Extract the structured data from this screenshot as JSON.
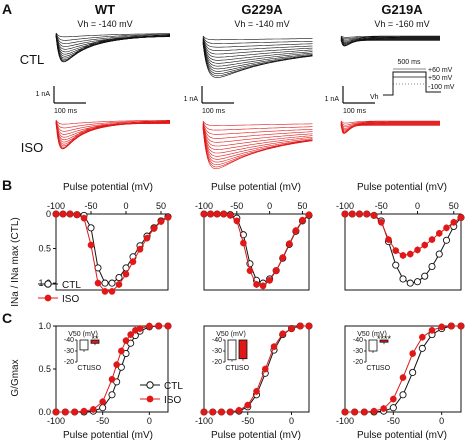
{
  "panels": {
    "A": "A",
    "B": "B",
    "C": "C"
  },
  "columns": [
    {
      "title": "WT",
      "holding": "Vh = -140 mV"
    },
    {
      "title": "G229A",
      "holding": "Vh = -140 mV"
    },
    {
      "title": "G219A",
      "holding": "Vh = -160 mV"
    }
  ],
  "rows": {
    "ctl": "CTL",
    "iso": "ISO"
  },
  "colors": {
    "ctl": "#111111",
    "iso": "#e01818"
  },
  "scalebars": {
    "current": "1 nA",
    "time": "100 ms"
  },
  "protocol": {
    "duration": "500 ms",
    "v_top": "+60 mV",
    "v_mid": "+50 mV",
    "v_bottom": "-100 mV",
    "vh": "Vh"
  },
  "axis": {
    "pulse": "Pulse potential (mV)",
    "ylabel_B": "INa / INa max (CTL)",
    "ylabel_C": "G/Gmax"
  },
  "legend": {
    "ctl": "CTL",
    "iso": "ISO"
  },
  "inset": {
    "title": "V50 (mV)",
    "labels": [
      "CTL",
      "ISO"
    ],
    "yticks": [
      "-40",
      "-30",
      "-20"
    ],
    "significance": [
      "**",
      "",
      "****"
    ]
  },
  "chart_data": [
    {
      "type": "line",
      "panel": "B",
      "column": "WT",
      "xlabel": "Pulse potential (mV)",
      "ylabel": "INa / INa max (CTL)",
      "xlim": [
        -100,
        60
      ],
      "ylim": [
        0,
        1.1
      ],
      "y_inverted": true,
      "x": [
        -100,
        -90,
        -80,
        -70,
        -60,
        -50,
        -40,
        -30,
        -20,
        -10,
        0,
        10,
        20,
        30,
        40,
        50,
        60
      ],
      "series": [
        {
          "name": "CTL",
          "values": [
            0,
            0,
            0,
            0.01,
            0.02,
            0.2,
            0.78,
            1.0,
            1.0,
            0.92,
            0.78,
            0.62,
            0.46,
            0.32,
            0.2,
            0.1,
            0.04
          ]
        },
        {
          "name": "ISO",
          "values": [
            0,
            0,
            0,
            0.01,
            0.06,
            0.45,
            1.0,
            1.12,
            1.12,
            1.02,
            0.87,
            0.69,
            0.51,
            0.35,
            0.21,
            0.11,
            0.05
          ]
        }
      ]
    },
    {
      "type": "line",
      "panel": "B",
      "column": "G229A",
      "xlabel": "Pulse potential (mV)",
      "xlim": [
        -100,
        60
      ],
      "ylim": [
        0,
        1.1
      ],
      "y_inverted": true,
      "x": [
        -100,
        -90,
        -80,
        -70,
        -60,
        -50,
        -40,
        -30,
        -20,
        -10,
        0,
        10,
        20,
        30,
        40,
        50,
        60
      ],
      "series": [
        {
          "name": "CTL",
          "values": [
            0,
            0,
            0,
            0,
            0.01,
            0.06,
            0.3,
            0.72,
            0.96,
            1.0,
            0.94,
            0.82,
            0.64,
            0.44,
            0.25,
            0.1,
            0.02
          ]
        },
        {
          "name": "ISO",
          "values": [
            0,
            0,
            0,
            0,
            0.02,
            0.1,
            0.42,
            0.82,
            1.02,
            1.04,
            0.96,
            0.82,
            0.63,
            0.43,
            0.24,
            0.09,
            0.01
          ]
        }
      ]
    },
    {
      "type": "line",
      "panel": "B",
      "column": "G219A",
      "xlabel": "Pulse potential (mV)",
      "xlim": [
        -100,
        60
      ],
      "ylim": [
        0,
        1.1
      ],
      "y_inverted": true,
      "x": [
        -100,
        -90,
        -80,
        -70,
        -60,
        -50,
        -40,
        -30,
        -20,
        -10,
        0,
        10,
        20,
        30,
        40,
        50,
        60
      ],
      "series": [
        {
          "name": "CTL",
          "values": [
            0,
            0,
            0,
            0,
            0.02,
            0.1,
            0.4,
            0.74,
            0.94,
            1.0,
            0.98,
            0.9,
            0.76,
            0.58,
            0.38,
            0.18,
            0.05
          ]
        },
        {
          "name": "ISO",
          "values": [
            0,
            0,
            0,
            0,
            0.02,
            0.12,
            0.37,
            0.53,
            0.6,
            0.58,
            0.52,
            0.45,
            0.37,
            0.28,
            0.2,
            0.12,
            0.05
          ]
        }
      ]
    },
    {
      "type": "line",
      "panel": "C",
      "column": "WT",
      "xlabel": "Pulse potential (mV)",
      "ylabel": "G/Gmax",
      "xlim": [
        -100,
        20
      ],
      "ylim": [
        0,
        1
      ],
      "x": [
        -100,
        -90,
        -80,
        -70,
        -60,
        -50,
        -40,
        -35,
        -30,
        -25,
        -20,
        -15,
        -10,
        0,
        10,
        20
      ],
      "series": [
        {
          "name": "CTL",
          "values": [
            0,
            0,
            0,
            0,
            0.01,
            0.05,
            0.2,
            0.35,
            0.52,
            0.68,
            0.8,
            0.89,
            0.94,
            0.99,
            1.0,
            1.0
          ]
        },
        {
          "name": "ISO",
          "values": [
            0,
            0,
            0,
            0.01,
            0.03,
            0.12,
            0.38,
            0.55,
            0.71,
            0.83,
            0.9,
            0.95,
            0.97,
            1.0,
            1.0,
            1.0
          ]
        }
      ],
      "inset": {
        "title": "V50 (mV)",
        "categories": [
          "CTL",
          "ISO"
        ],
        "values": [
          -31,
          -37
        ],
        "significance": "**"
      }
    },
    {
      "type": "line",
      "panel": "C",
      "column": "G229A",
      "xlabel": "Pulse potential (mV)",
      "xlim": [
        -100,
        20
      ],
      "ylim": [
        0,
        1
      ],
      "x": [
        -100,
        -90,
        -80,
        -70,
        -60,
        -50,
        -40,
        -30,
        -20,
        -10,
        0,
        10,
        20
      ],
      "series": [
        {
          "name": "CTL",
          "values": [
            0,
            0,
            0,
            0,
            0.01,
            0.06,
            0.2,
            0.45,
            0.72,
            0.9,
            0.97,
            1.0,
            1.0
          ]
        },
        {
          "name": "ISO",
          "values": [
            0,
            0,
            0,
            0,
            0.02,
            0.08,
            0.24,
            0.5,
            0.76,
            0.91,
            0.97,
            1.0,
            1.0
          ]
        }
      ],
      "inset": {
        "title": "V50 (mV)",
        "categories": [
          "CTL",
          "ISO"
        ],
        "values": [
          -22,
          -23
        ],
        "significance": ""
      }
    },
    {
      "type": "line",
      "panel": "C",
      "column": "G219A",
      "xlabel": "Pulse potential (mV)",
      "xlim": [
        -100,
        20
      ],
      "ylim": [
        0,
        1
      ],
      "x": [
        -100,
        -90,
        -80,
        -70,
        -60,
        -50,
        -40,
        -30,
        -20,
        -10,
        0,
        10,
        20
      ],
      "series": [
        {
          "name": "CTL",
          "values": [
            0,
            0,
            0,
            0,
            0.01,
            0.05,
            0.2,
            0.46,
            0.74,
            0.9,
            0.97,
            1.0,
            1.0
          ]
        },
        {
          "name": "ISO",
          "values": [
            0,
            0,
            0,
            0.01,
            0.04,
            0.15,
            0.4,
            0.68,
            0.87,
            0.95,
            0.99,
            1.0,
            1.0
          ]
        }
      ],
      "inset": {
        "title": "V50 (mV)",
        "categories": [
          "CTL",
          "ISO"
        ],
        "values": [
          -30,
          -38
        ],
        "significance": "****"
      }
    }
  ]
}
